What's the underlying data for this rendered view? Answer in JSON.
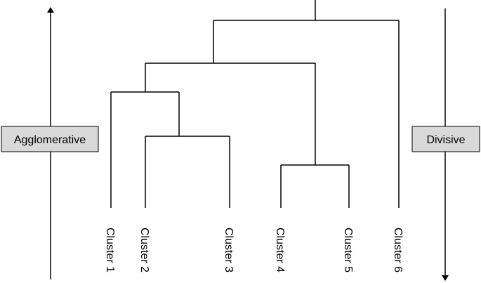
{
  "diagram": {
    "left_label": "Agglomerative",
    "right_label": "Divisive",
    "colors": {
      "line": "#000000",
      "box_fill": "#d9d9d9",
      "box_stroke": "#000000"
    },
    "leaves": [
      {
        "id": "c1",
        "label": "Cluster 1"
      },
      {
        "id": "c2",
        "label": "Cluster 2"
      },
      {
        "id": "c3",
        "label": "Cluster 3"
      },
      {
        "id": "c4",
        "label": "Cluster 4"
      },
      {
        "id": "c5",
        "label": "Cluster 5"
      },
      {
        "id": "c6",
        "label": "Cluster 6"
      }
    ]
  }
}
